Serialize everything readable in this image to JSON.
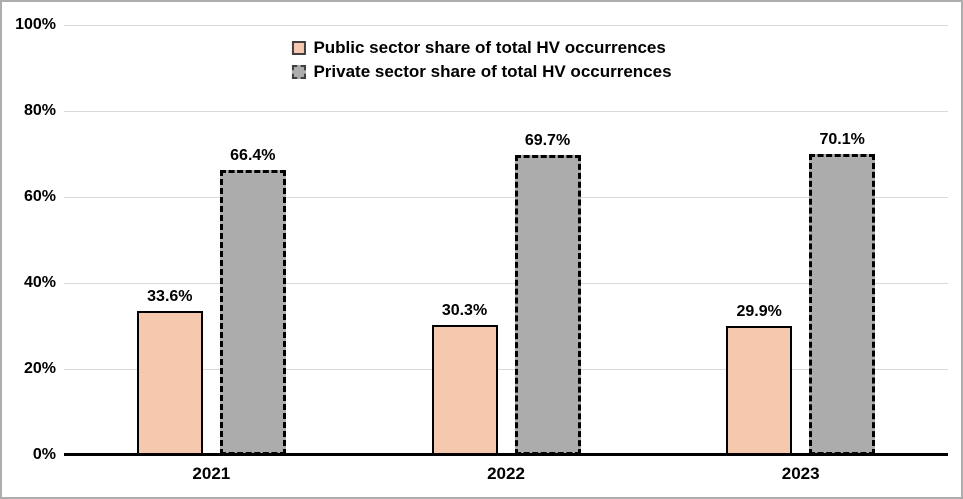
{
  "frame": {
    "background": "#FFFFFF",
    "border_color": "#ADADAD"
  },
  "colors": {
    "public_fill": "#F6C9AE",
    "private_fill": "#ACACAC",
    "bar_border": "#000000",
    "gridline": "#D9D9D9",
    "axis_line": "#000000",
    "text": "#000000"
  },
  "chart_data": {
    "type": "bar",
    "title": "",
    "xlabel": "",
    "ylabel": "",
    "categories": [
      "2021",
      "2022",
      "2023"
    ],
    "series": [
      {
        "name": "Public sector share of total HV occurrences",
        "values": [
          33.6,
          30.3,
          29.9
        ],
        "labels": [
          "33.6%",
          "30.3%",
          "29.9%"
        ],
        "fill": "#F6C9AE",
        "border_style": "solid"
      },
      {
        "name": "Private sector share of total HV occurrences",
        "values": [
          66.4,
          69.7,
          70.1
        ],
        "labels": [
          "66.4%",
          "69.7%",
          "70.1%"
        ],
        "fill": "#ACACAC",
        "border_style": "dashed"
      }
    ],
    "ylim": [
      0,
      100
    ],
    "yticks": [
      "0%",
      "20%",
      "40%",
      "60%",
      "80%",
      "100%"
    ],
    "ytick_positions_pct": [
      0,
      20,
      40,
      60,
      80,
      100
    ],
    "grid": true,
    "legend_position": "top-center",
    "data_labels": true
  }
}
